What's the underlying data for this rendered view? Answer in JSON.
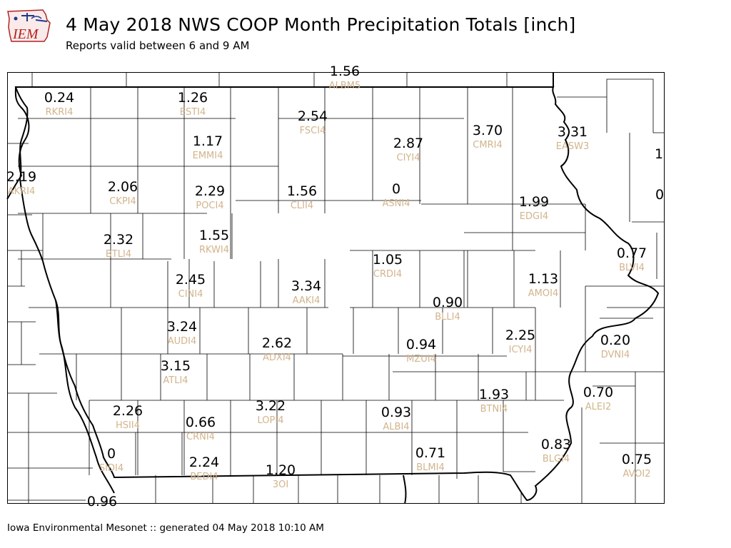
{
  "header": {
    "title": "4 May 2018 NWS COOP Month Precipitation Totals [inch]",
    "subtitle": "Reports valid between 6 and 9 AM"
  },
  "logo": {
    "text": "IEM"
  },
  "footer": {
    "text": "Iowa Environmental Mesonet :: generated 04 May 2018 10:10 AM"
  },
  "colors": {
    "value_text": "#000000",
    "station_text": "#d2b48c",
    "border": "#000000"
  },
  "stations": [
    {
      "id": "ALBM5",
      "value": "1.56"
    },
    {
      "id": "RKRI4",
      "value": "0.24"
    },
    {
      "id": "ESTI4",
      "value": "1.26"
    },
    {
      "id": "FSCI4",
      "value": "2.54"
    },
    {
      "id": "CMRI4",
      "value": "3.70"
    },
    {
      "id": "EASW3",
      "value": "3.31"
    },
    {
      "id": "CIYI4",
      "value": "2.87"
    },
    {
      "id": "EMMI4",
      "value": "1.17"
    },
    {
      "id": "AKRI4",
      "value": "2.19"
    },
    {
      "id": "CKPI4",
      "value": "2.06"
    },
    {
      "id": "POCI4",
      "value": "2.29"
    },
    {
      "id": "CLII4",
      "value": "1.56"
    },
    {
      "id": "ASNI4",
      "value": "0"
    },
    {
      "id": "EDGI4",
      "value": "1.99"
    },
    {
      "id": "BTLI4",
      "value": "2.32"
    },
    {
      "id": "RKWI4",
      "value": "1.55"
    },
    {
      "id": "CRDI4",
      "value": "1.05"
    },
    {
      "id": "BLVI4",
      "value": "0.77"
    },
    {
      "id": "CINI4",
      "value": "2.45"
    },
    {
      "id": "AAKI4",
      "value": "3.34"
    },
    {
      "id": "AMOI4",
      "value": "1.13"
    },
    {
      "id": "BLLI4",
      "value": "0.90"
    },
    {
      "id": "AUDI4",
      "value": "3.24"
    },
    {
      "id": "ADXI4",
      "value": "2.62"
    },
    {
      "id": "MZUI4",
      "value": "0.94"
    },
    {
      "id": "ICYI4",
      "value": "2.25"
    },
    {
      "id": "DVNI4",
      "value": "0.20"
    },
    {
      "id": "ATLI4",
      "value": "3.15"
    },
    {
      "id": "BTNI4",
      "value": "1.93"
    },
    {
      "id": "ALEI2",
      "value": "0.70"
    },
    {
      "id": "HSII4",
      "value": "2.26"
    },
    {
      "id": "CRNI4",
      "value": "0.66"
    },
    {
      "id": "LOPI4",
      "value": "3.22"
    },
    {
      "id": "ALBI4",
      "value": "0.93"
    },
    {
      "id": "SIDI4",
      "value": "0"
    },
    {
      "id": "BEDI4",
      "value": "2.24"
    },
    {
      "id": "3OI",
      "value": "1.20"
    },
    {
      "id": "BLMI4",
      "value": "0.71"
    },
    {
      "id": "BLGI4",
      "value": "0.83"
    },
    {
      "id": "AVOI2",
      "value": "0.75"
    }
  ],
  "edge_values": [
    "1",
    "0",
    "0.96"
  ]
}
